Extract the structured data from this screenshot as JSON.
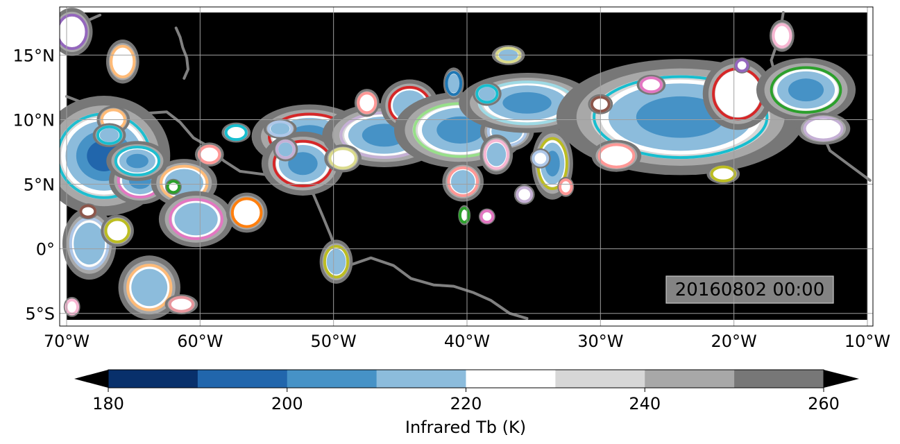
{
  "map": {
    "lon_range": [
      -70,
      -10
    ],
    "lat_range": [
      -5.5,
      18.3
    ],
    "lon_ticks": [
      {
        "value": -70,
        "label": "70°W"
      },
      {
        "value": -60,
        "label": "60°W"
      },
      {
        "value": -50,
        "label": "50°W"
      },
      {
        "value": -40,
        "label": "40°W"
      },
      {
        "value": -30,
        "label": "30°W"
      },
      {
        "value": -20,
        "label": "20°W"
      },
      {
        "value": -10,
        "label": "10°W"
      }
    ],
    "lat_ticks": [
      {
        "value": 15,
        "label": "15°N"
      },
      {
        "value": 10,
        "label": "10°N"
      },
      {
        "value": 5,
        "label": "5°N"
      },
      {
        "value": 0,
        "label": "0°"
      },
      {
        "value": -5,
        "label": "5°S"
      }
    ],
    "background_color": "#000000",
    "coastline_color": "#808080",
    "gridlines": true,
    "timestamp": "20160802 00:00",
    "cloud_systems": [
      {
        "lon": -67.2,
        "lat": 7.2,
        "rlon": 3.2,
        "rlat": 3.0,
        "tb": 195,
        "outline": "#1fbecf"
      },
      {
        "lon": -64.5,
        "lat": 5.3,
        "rlon": 1.5,
        "rlat": 1.2,
        "tb": 205,
        "outline": "#e377c2"
      },
      {
        "lon": -61.2,
        "lat": 5.1,
        "rlon": 1.6,
        "rlat": 1.2,
        "tb": 210,
        "outline": "#ffbb78"
      },
      {
        "lon": -60.3,
        "lat": 2.3,
        "rlon": 1.8,
        "rlat": 1.4,
        "tb": 210,
        "outline": "#e377c2"
      },
      {
        "lon": -56.5,
        "lat": 2.8,
        "rlon": 1.0,
        "rlat": 1.0,
        "tb": 218,
        "outline": "#ff7f0e"
      },
      {
        "lon": -64.7,
        "lat": 6.8,
        "rlon": 1.5,
        "rlat": 1.0,
        "tb": 200,
        "outline": "#1fbecf"
      },
      {
        "lon": -51.8,
        "lat": 8.7,
        "rlon": 2.8,
        "rlat": 1.6,
        "tb": 205,
        "outline": "#d62728"
      },
      {
        "lon": -52.3,
        "lat": 6.6,
        "rlon": 2.0,
        "rlat": 1.6,
        "tb": 205,
        "outline": "#d62728"
      },
      {
        "lon": -46.2,
        "lat": 8.8,
        "rlon": 3.0,
        "rlat": 1.6,
        "tb": 198,
        "outline": "#c5b0d5"
      },
      {
        "lon": -44.3,
        "lat": 11.1,
        "rlon": 1.4,
        "rlat": 1.3,
        "tb": 208,
        "outline": "#d62728"
      },
      {
        "lon": -40.5,
        "lat": 9.2,
        "rlon": 3.2,
        "rlat": 1.9,
        "tb": 205,
        "outline": "#98df8a"
      },
      {
        "lon": -37.0,
        "lat": 9.1,
        "rlon": 1.3,
        "rlat": 1.0,
        "tb": 208,
        "outline": "#aec7e8"
      },
      {
        "lon": -35.5,
        "lat": 11.3,
        "rlon": 3.3,
        "rlat": 1.5,
        "tb": 203,
        "outline": "#9edae5"
      },
      {
        "lon": -33.6,
        "lat": 6.6,
        "rlon": 1.0,
        "rlat": 1.8,
        "tb": 205,
        "outline": "#bcbd22"
      },
      {
        "lon": -40.3,
        "lat": 5.2,
        "rlon": 1.0,
        "rlat": 1.0,
        "tb": 215,
        "outline": "#ff9896"
      },
      {
        "lon": -24.0,
        "lat": 10.2,
        "rlon": 6.0,
        "rlat": 2.9,
        "tb": 196,
        "outline": "#17becf"
      },
      {
        "lon": -19.7,
        "lat": 12.0,
        "rlon": 1.7,
        "rlat": 1.8,
        "tb": 230,
        "outline": "#d62728"
      },
      {
        "lon": -14.6,
        "lat": 12.3,
        "rlon": 2.4,
        "rlat": 1.6,
        "tb": 205,
        "outline": "#2ca02c"
      },
      {
        "lon": -28.8,
        "lat": 7.2,
        "rlon": 1.2,
        "rlat": 0.8,
        "tb": 230,
        "outline": "#ff9896"
      },
      {
        "lon": -13.3,
        "lat": 9.3,
        "rlon": 1.3,
        "rlat": 0.8,
        "tb": 230,
        "outline": "#c5b0d5"
      },
      {
        "lon": -68.3,
        "lat": 0.4,
        "rlon": 1.3,
        "rlat": 1.8,
        "tb": 215,
        "outline": "#aec7e8"
      },
      {
        "lon": -63.8,
        "lat": -3.0,
        "rlon": 1.5,
        "rlat": 1.6,
        "tb": 215,
        "outline": "#ffbb78"
      },
      {
        "lon": -49.8,
        "lat": -1.0,
        "rlon": 0.8,
        "rlat": 1.1,
        "tb": 215,
        "outline": "#bcbd22"
      },
      {
        "lon": -66.5,
        "lat": 10.0,
        "rlon": 0.8,
        "rlat": 0.7,
        "tb": 218,
        "outline": "#ffbb78"
      },
      {
        "lon": -65.8,
        "lat": 14.5,
        "rlon": 0.8,
        "rlat": 1.1,
        "tb": 230,
        "outline": "#ffbb78"
      },
      {
        "lon": -36.9,
        "lat": 15.0,
        "rlon": 0.8,
        "rlat": 0.5,
        "tb": 212,
        "outline": "#dbdb8d"
      },
      {
        "lon": -41.0,
        "lat": 12.8,
        "rlon": 0.5,
        "rlat": 0.8,
        "tb": 215,
        "outline": "#1f77b4"
      },
      {
        "lon": -38.5,
        "lat": 12.0,
        "rlon": 0.7,
        "rlat": 0.6,
        "tb": 212,
        "outline": "#17becf"
      },
      {
        "lon": -37.8,
        "lat": 7.3,
        "rlon": 0.8,
        "rlat": 1.0,
        "tb": 212,
        "outline": "#f7b6d2"
      },
      {
        "lon": -34.5,
        "lat": 7.0,
        "rlon": 0.5,
        "rlat": 0.5,
        "tb": 218,
        "outline": "#aec7e8"
      },
      {
        "lon": -30.0,
        "lat": 11.2,
        "rlon": 0.6,
        "rlat": 0.5,
        "tb": 230,
        "outline": "#8c564b"
      },
      {
        "lon": -66.8,
        "lat": 8.8,
        "rlon": 0.8,
        "rlat": 0.6,
        "tb": 215,
        "outline": "#17becf"
      },
      {
        "lon": -54.0,
        "lat": 9.3,
        "rlon": 0.8,
        "rlat": 0.5,
        "tb": 215,
        "outline": "#aec7e8"
      },
      {
        "lon": -53.6,
        "lat": 7.7,
        "rlon": 0.6,
        "rlat": 0.6,
        "tb": 212,
        "outline": "#c5b0d5"
      },
      {
        "lon": -47.5,
        "lat": 11.3,
        "rlon": 0.6,
        "rlat": 0.7,
        "tb": 230,
        "outline": "#ff9896"
      },
      {
        "lon": -59.3,
        "lat": 7.3,
        "rlon": 0.7,
        "rlat": 0.6,
        "tb": 230,
        "outline": "#ff9896"
      },
      {
        "lon": -62.0,
        "lat": 4.8,
        "rlon": 0.4,
        "rlat": 0.4,
        "tb": 230,
        "outline": "#2ca02c"
      },
      {
        "lon": -68.4,
        "lat": 2.9,
        "rlon": 0.5,
        "rlat": 0.4,
        "tb": 230,
        "outline": "#8c564b"
      },
      {
        "lon": -66.2,
        "lat": 1.4,
        "rlon": 0.8,
        "rlat": 0.8,
        "tb": 230,
        "outline": "#bcbd22"
      },
      {
        "lon": -69.6,
        "lat": 16.8,
        "rlon": 1.0,
        "rlat": 1.2,
        "tb": 225,
        "outline": "#9467bd"
      },
      {
        "lon": -16.4,
        "lat": 16.5,
        "rlon": 0.6,
        "rlat": 0.8,
        "tb": 230,
        "outline": "#f7b6d2"
      },
      {
        "lon": -19.4,
        "lat": 14.2,
        "rlon": 0.4,
        "rlat": 0.4,
        "tb": 230,
        "outline": "#9467bd"
      },
      {
        "lon": -35.7,
        "lat": 4.2,
        "rlon": 0.5,
        "rlat": 0.5,
        "tb": 230,
        "outline": "#c5b0d5"
      },
      {
        "lon": -32.6,
        "lat": 4.8,
        "rlon": 0.4,
        "rlat": 0.5,
        "tb": 230,
        "outline": "#ff9896"
      },
      {
        "lon": -57.3,
        "lat": 9.0,
        "rlon": 0.7,
        "rlat": 0.5,
        "tb": 218,
        "outline": "#17becf"
      },
      {
        "lon": -49.3,
        "lat": 7.0,
        "rlon": 0.9,
        "rlat": 0.7,
        "tb": 230,
        "outline": "#dbdb8d"
      },
      {
        "lon": -38.5,
        "lat": 2.5,
        "rlon": 0.4,
        "rlat": 0.4,
        "tb": 230,
        "outline": "#e377c2"
      },
      {
        "lon": -40.2,
        "lat": 2.6,
        "rlon": 0.3,
        "rlat": 0.5,
        "tb": 230,
        "outline": "#2ca02c"
      },
      {
        "lon": -20.8,
        "lat": 5.8,
        "rlon": 0.8,
        "rlat": 0.5,
        "tb": 230,
        "outline": "#bcbd22"
      },
      {
        "lon": -26.2,
        "lat": 12.7,
        "rlon": 0.7,
        "rlat": 0.5,
        "tb": 230,
        "outline": "#e377c2"
      },
      {
        "lon": -69.6,
        "lat": -4.5,
        "rlon": 0.4,
        "rlat": 0.5,
        "tb": 230,
        "outline": "#f7b6d2"
      },
      {
        "lon": -61.4,
        "lat": -4.3,
        "rlon": 0.8,
        "rlat": 0.5,
        "tb": 230,
        "outline": "#e7969c"
      }
    ]
  },
  "colorbar": {
    "label": "Infrared Tb (K)",
    "ticks": [
      {
        "value": 180,
        "label": "180"
      },
      {
        "value": 200,
        "label": "200"
      },
      {
        "value": 220,
        "label": "220"
      },
      {
        "value": 240,
        "label": "240"
      },
      {
        "value": 260,
        "label": "260"
      }
    ],
    "levels": [
      180,
      190,
      200,
      210,
      220,
      230,
      240,
      250,
      260
    ],
    "colors": [
      "#08306b",
      "#2166ac",
      "#4692c6",
      "#8cbcdc",
      "#ffffff",
      "#d7d7d7",
      "#a8a8a8",
      "#777777"
    ],
    "under_color": "#000000",
    "over_color": "#000000"
  }
}
